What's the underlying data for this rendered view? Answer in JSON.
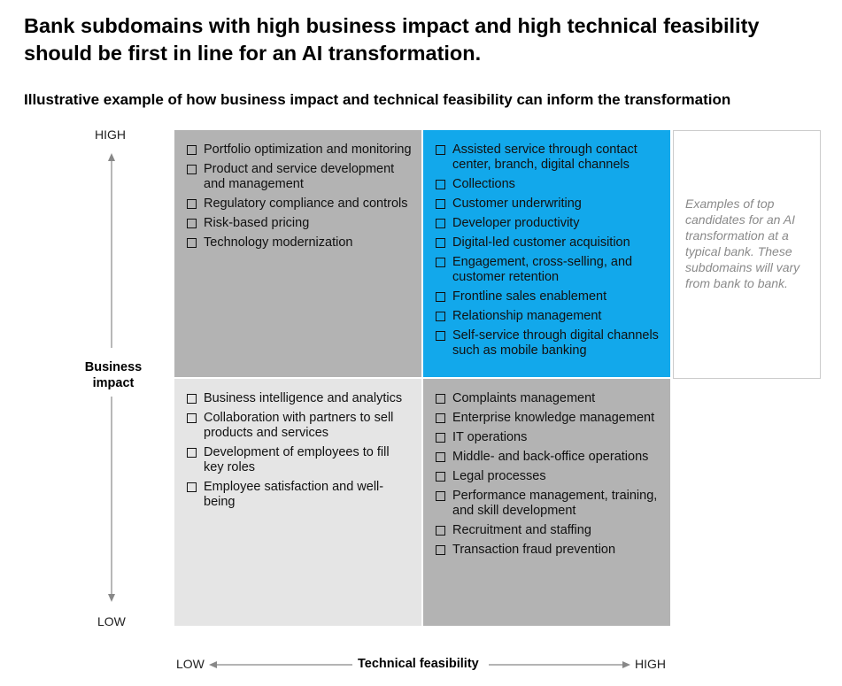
{
  "title": "Bank subdomains with high business impact and high technical feasibility should be first in line for an AI transformation.",
  "subtitle": "Illustrative example of how business impact and technical feasibility can inform the transformation",
  "y_axis": {
    "high": "HIGH",
    "low": "LOW",
    "label": "Business impact"
  },
  "x_axis": {
    "low": "LOW",
    "high": "HIGH",
    "label": "Technical feasibility"
  },
  "colors": {
    "blue_quadrant": "#12a8eb",
    "grey_quadrant": "#b3b3b3",
    "light_quadrant": "#e5e5e5",
    "note_text": "#8a8a8a"
  },
  "quadrants": {
    "high_impact_low_feasibility": [
      "Portfolio optimization and monitoring",
      "Product and service development and management",
      "Regulatory compliance and controls",
      "Risk-based pricing",
      "Technology modernization"
    ],
    "high_impact_high_feasibility": [
      "Assisted service through contact center, branch, digital channels",
      "Collections",
      "Customer underwriting",
      "Developer productivity",
      "Digital-led customer acquisition",
      "Engagement, cross-selling, and customer retention",
      "Frontline sales enablement",
      "Relationship management",
      "Self-service through digital channels such as mobile banking"
    ],
    "low_impact_low_feasibility": [
      "Business intelligence and analytics",
      "Collaboration with partners to sell products and services",
      "Development of employees to fill key roles",
      "Employee satisfaction and well-being"
    ],
    "low_impact_high_feasibility": [
      "Complaints management",
      "Enterprise knowledge management",
      "IT operations",
      "Middle- and back-office operations",
      "Legal processes",
      "Performance management, training, and skill development",
      "Recruitment and staffing",
      "Transaction fraud prevention"
    ]
  },
  "note": "Examples of top candidates for an AI transformation at a typical bank. These subdomains will vary from bank to bank."
}
